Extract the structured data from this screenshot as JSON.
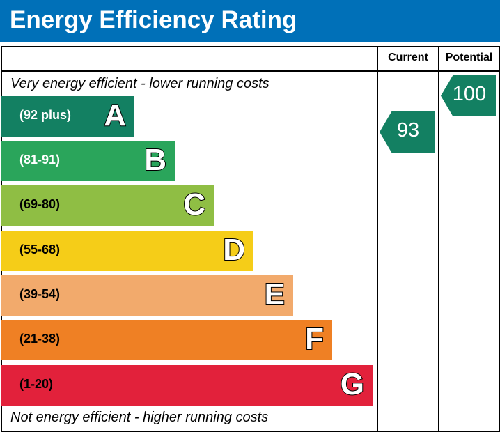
{
  "title": "Energy Efficiency Rating",
  "header": {
    "current": "Current",
    "potential": "Potential"
  },
  "top_note": "Very energy efficient - lower running costs",
  "bottom_note": "Not energy efficient - higher running costs",
  "chart_data": {
    "type": "bar",
    "bands": [
      {
        "letter": "A",
        "range": "(92 plus)",
        "color": "#138062",
        "text_color": "#ffffff"
      },
      {
        "letter": "B",
        "range": "(81-91)",
        "color": "#2aa55b",
        "text_color": "#ffffff"
      },
      {
        "letter": "C",
        "range": "(69-80)",
        "color": "#8fbe44",
        "text_color": "#000000"
      },
      {
        "letter": "D",
        "range": "(55-68)",
        "color": "#f5cd18",
        "text_color": "#000000"
      },
      {
        "letter": "E",
        "range": "(39-54)",
        "color": "#f2aa6c",
        "text_color": "#000000"
      },
      {
        "letter": "F",
        "range": "(21-38)",
        "color": "#ef8024",
        "text_color": "#000000"
      },
      {
        "letter": "G",
        "range": "(1-20)",
        "color": "#e2213b",
        "text_color": "#000000"
      }
    ],
    "current": {
      "value": "93",
      "band": "A",
      "color": "#138062"
    },
    "potential": {
      "value": "100",
      "band": "A",
      "color": "#138062"
    }
  }
}
